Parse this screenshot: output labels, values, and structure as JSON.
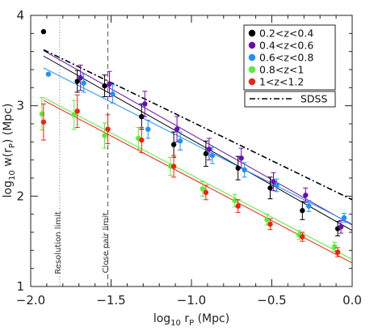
{
  "chart_data": {
    "type": "scatter",
    "xlabel_main": "log",
    "xlabel_sub": "10",
    "xlabel_mid": " r",
    "xlabel_sub2": "P",
    "xlabel_unit": " (Mpc)",
    "ylabel_main": "log",
    "ylabel_sub": "10",
    "ylabel_mid": " w(r",
    "ylabel_sub2": "P",
    "ylabel_unit": ") (Mpc)",
    "xlim": [
      -2.0,
      0.0
    ],
    "ylim": [
      1.0,
      4.0
    ],
    "x_ticks": [
      "−2.0",
      "−1.5",
      "−1.0",
      "−0.5",
      "0.0"
    ],
    "y_ticks": [
      "1",
      "2",
      "3",
      "4"
    ],
    "legend_position": "top-right",
    "annotations": {
      "resolution_limit": {
        "x": -1.82,
        "label": "Resolution limit"
      },
      "close_pair_limit": {
        "x": -1.52,
        "label": "Close pair limit"
      }
    },
    "series": [
      {
        "name": "0.2<z<0.4",
        "color": "#000000",
        "points": [
          [
            -1.92,
            3.82,
            0
          ],
          [
            -1.71,
            3.27,
            0.12
          ],
          [
            -1.54,
            3.22,
            0.12
          ],
          [
            -1.31,
            2.88,
            0.14
          ],
          [
            -1.11,
            2.57,
            0.14
          ],
          [
            -0.91,
            2.47,
            0.14
          ],
          [
            -0.71,
            2.31,
            0.13
          ],
          [
            -0.51,
            2.09,
            0.12
          ],
          [
            -0.31,
            1.84,
            0.1
          ],
          [
            -0.09,
            1.64,
            0.08
          ]
        ],
        "fit": [
          [
            -1.92,
            3.55
          ],
          [
            0.0,
            1.62
          ]
        ]
      },
      {
        "name": "0.4<z<0.6",
        "color": "#6a0dad",
        "points": [
          [
            -1.69,
            3.31,
            0.14
          ],
          [
            -1.51,
            3.24,
            0.14
          ],
          [
            -1.29,
            3.02,
            0.14
          ],
          [
            -1.09,
            2.74,
            0.14
          ],
          [
            -0.89,
            2.52,
            0.12
          ],
          [
            -0.69,
            2.42,
            0.11
          ],
          [
            -0.49,
            2.16,
            0.1
          ],
          [
            -0.29,
            2.01,
            0.08
          ],
          [
            -0.07,
            1.66,
            0.07
          ]
        ],
        "fit": [
          [
            -1.92,
            3.61
          ],
          [
            0.0,
            1.68
          ]
        ]
      },
      {
        "name": "0.6<z<0.8",
        "color": "#1e90ff",
        "points": [
          [
            -1.89,
            3.35,
            0
          ],
          [
            -1.67,
            3.25,
            0.1
          ],
          [
            -1.49,
            3.13,
            0.1
          ],
          [
            -1.27,
            2.74,
            0.1
          ],
          [
            -1.07,
            2.61,
            0.1
          ],
          [
            -0.87,
            2.45,
            0.09
          ],
          [
            -0.67,
            2.29,
            0.08
          ],
          [
            -0.47,
            2.12,
            0.07
          ],
          [
            -0.27,
            1.89,
            0.06
          ],
          [
            -0.05,
            1.76,
            0.05
          ]
        ],
        "fit": [
          [
            -1.92,
            3.42
          ],
          [
            0.0,
            1.69
          ]
        ]
      },
      {
        "name": "0.8<z<1",
        "color": "#55ee33",
        "points": [
          [
            -1.93,
            2.91,
            0.18
          ],
          [
            -1.73,
            2.9,
            0.16
          ],
          [
            -1.54,
            2.67,
            0.14
          ],
          [
            -1.33,
            2.64,
            0.12
          ],
          [
            -1.13,
            2.33,
            0.1
          ],
          [
            -0.93,
            2.08,
            0.08
          ],
          [
            -0.73,
            1.95,
            0.07
          ],
          [
            -0.53,
            1.74,
            0.06
          ],
          [
            -0.33,
            1.57,
            0.05
          ],
          [
            -0.11,
            1.44,
            0.05
          ]
        ],
        "fit": [
          [
            -1.92,
            3.09
          ],
          [
            0.0,
            1.3
          ]
        ]
      },
      {
        "name": "1<z<1.2",
        "color": "#ee2211",
        "points": [
          [
            -1.92,
            2.82,
            0.2
          ],
          [
            -1.71,
            2.94,
            0.18
          ],
          [
            -1.52,
            2.74,
            0.16
          ],
          [
            -1.31,
            2.62,
            0.14
          ],
          [
            -1.11,
            2.33,
            0.12
          ],
          [
            -0.91,
            2.04,
            0.08
          ],
          [
            -0.71,
            1.89,
            0.07
          ],
          [
            -0.51,
            1.69,
            0.06
          ],
          [
            -0.31,
            1.55,
            0.05
          ],
          [
            -0.09,
            1.38,
            0.05
          ]
        ],
        "fit": [
          [
            -1.92,
            3.06
          ],
          [
            0.0,
            1.26
          ]
        ]
      }
    ],
    "reference_line": {
      "name": "SDSS",
      "color": "#000000",
      "style": "dash-dot",
      "fit": [
        [
          -1.92,
          3.62
        ],
        [
          0.0,
          1.96
        ]
      ]
    }
  }
}
